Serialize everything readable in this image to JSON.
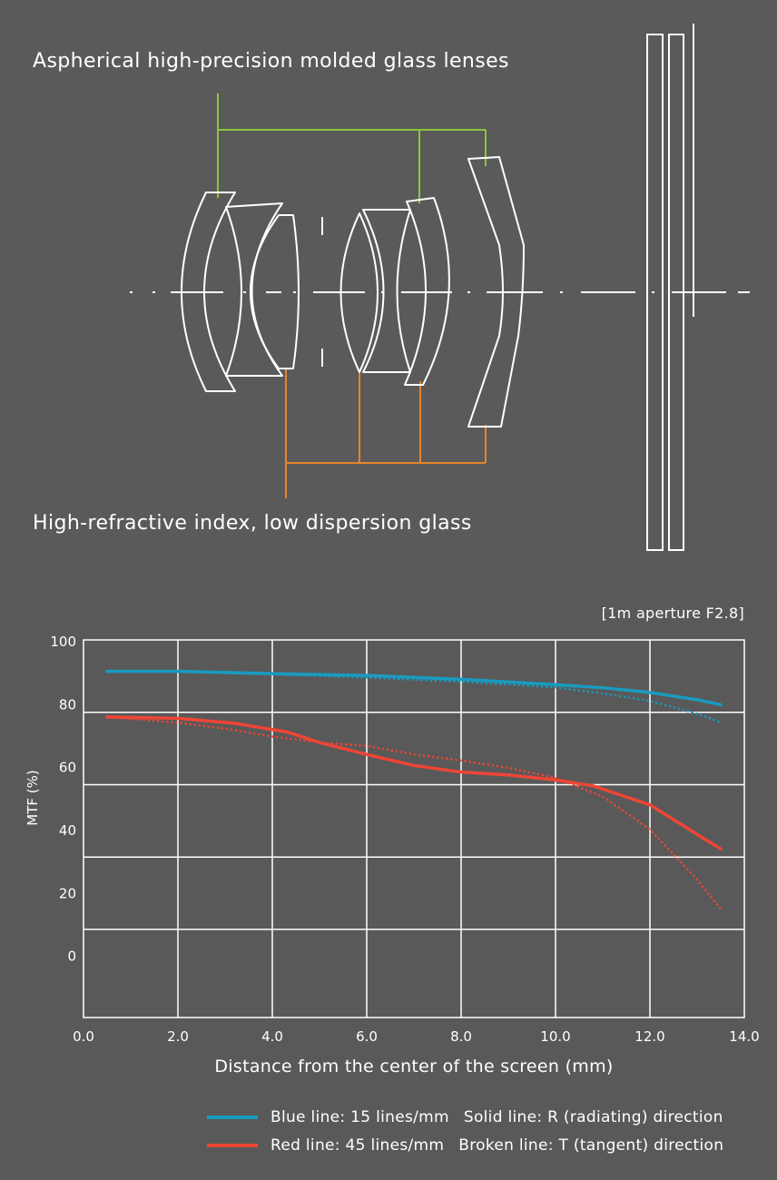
{
  "diagram": {
    "aspherical_label": "Aspherical high-precision molded glass lenses",
    "hri_label": "High-refractive index, low dispersion glass",
    "aspherical_color": "#8cc63f",
    "hri_color": "#e8832a",
    "element_color": "#ffffff"
  },
  "legend": {
    "blue_text": "Blue line: 15 lines/mm",
    "solid_text": "Solid line: R (radiating) direction",
    "red_text": "Red line: 45 lines/mm",
    "broken_text": "Broken line: T (tangent) direction",
    "blue_color": "#1a9bbf",
    "red_color": "#ef4536"
  },
  "chart_data": {
    "type": "line",
    "condition": "[1m aperture F2.8]",
    "title": "",
    "xlabel": "Distance from the center of the screen (mm)",
    "ylabel": "MTF (%)",
    "xlim": [
      0,
      14
    ],
    "ylim": [
      -20,
      100
    ],
    "x_ticks": [
      "0.0",
      "2.0",
      "4.0",
      "6.0",
      "8.0",
      "10.0",
      "12.0",
      "14.0"
    ],
    "y_ticks": [
      "100",
      "80",
      "60",
      "40",
      "20",
      "0"
    ],
    "grid": true,
    "series": [
      {
        "name": "Blue line: 15 lines/mm",
        "direction": "R (radiating)",
        "style": "solid",
        "color": "#1a9bbf",
        "x": [
          0.5,
          2.0,
          4.0,
          6.0,
          8.0,
          10.0,
          11.0,
          12.0,
          13.0,
          13.5
        ],
        "y": [
          90,
          90,
          89.3,
          88.7,
          87.5,
          85.8,
          84.8,
          83.3,
          81,
          79.4
        ]
      },
      {
        "name": "Blue line: 15 lines/mm",
        "direction": "T (tangent)",
        "style": "dotted",
        "color": "#1a9bbf",
        "x": [
          0.5,
          2.0,
          4.0,
          6.0,
          8.0,
          10.0,
          11.0,
          12.0,
          13.0,
          13.5
        ],
        "y": [
          90,
          90,
          89,
          88,
          86.7,
          84.9,
          83,
          80.6,
          76.6,
          73.8
        ]
      },
      {
        "name": "Red line: 45 lines/mm",
        "direction": "R (radiating)",
        "style": "solid",
        "color": "#ef4536",
        "x": [
          0.5,
          2.0,
          3.2,
          4.3,
          5.0,
          6.0,
          7.0,
          8.0,
          9.0,
          10.0,
          10.8,
          12.0,
          13.0,
          13.5
        ],
        "y": [
          75.5,
          75.1,
          73.5,
          70.8,
          67.4,
          63.6,
          60.1,
          58,
          57.1,
          55.5,
          53.6,
          47.6,
          38.2,
          33.6
        ]
      },
      {
        "name": "Red line: 45 lines/mm",
        "direction": "T (tangent)",
        "style": "dotted",
        "color": "#ef4536",
        "x": [
          0.5,
          2.0,
          3.0,
          4.0,
          5.0,
          6.0,
          7.0,
          8.0,
          9.0,
          10.0,
          11.0,
          12.0,
          13.0,
          13.5
        ],
        "y": [
          75.5,
          73.7,
          71.8,
          69.3,
          67.4,
          66.3,
          63.6,
          61.7,
          59.3,
          56.2,
          50.2,
          39.8,
          23.8,
          14.5
        ]
      }
    ]
  }
}
